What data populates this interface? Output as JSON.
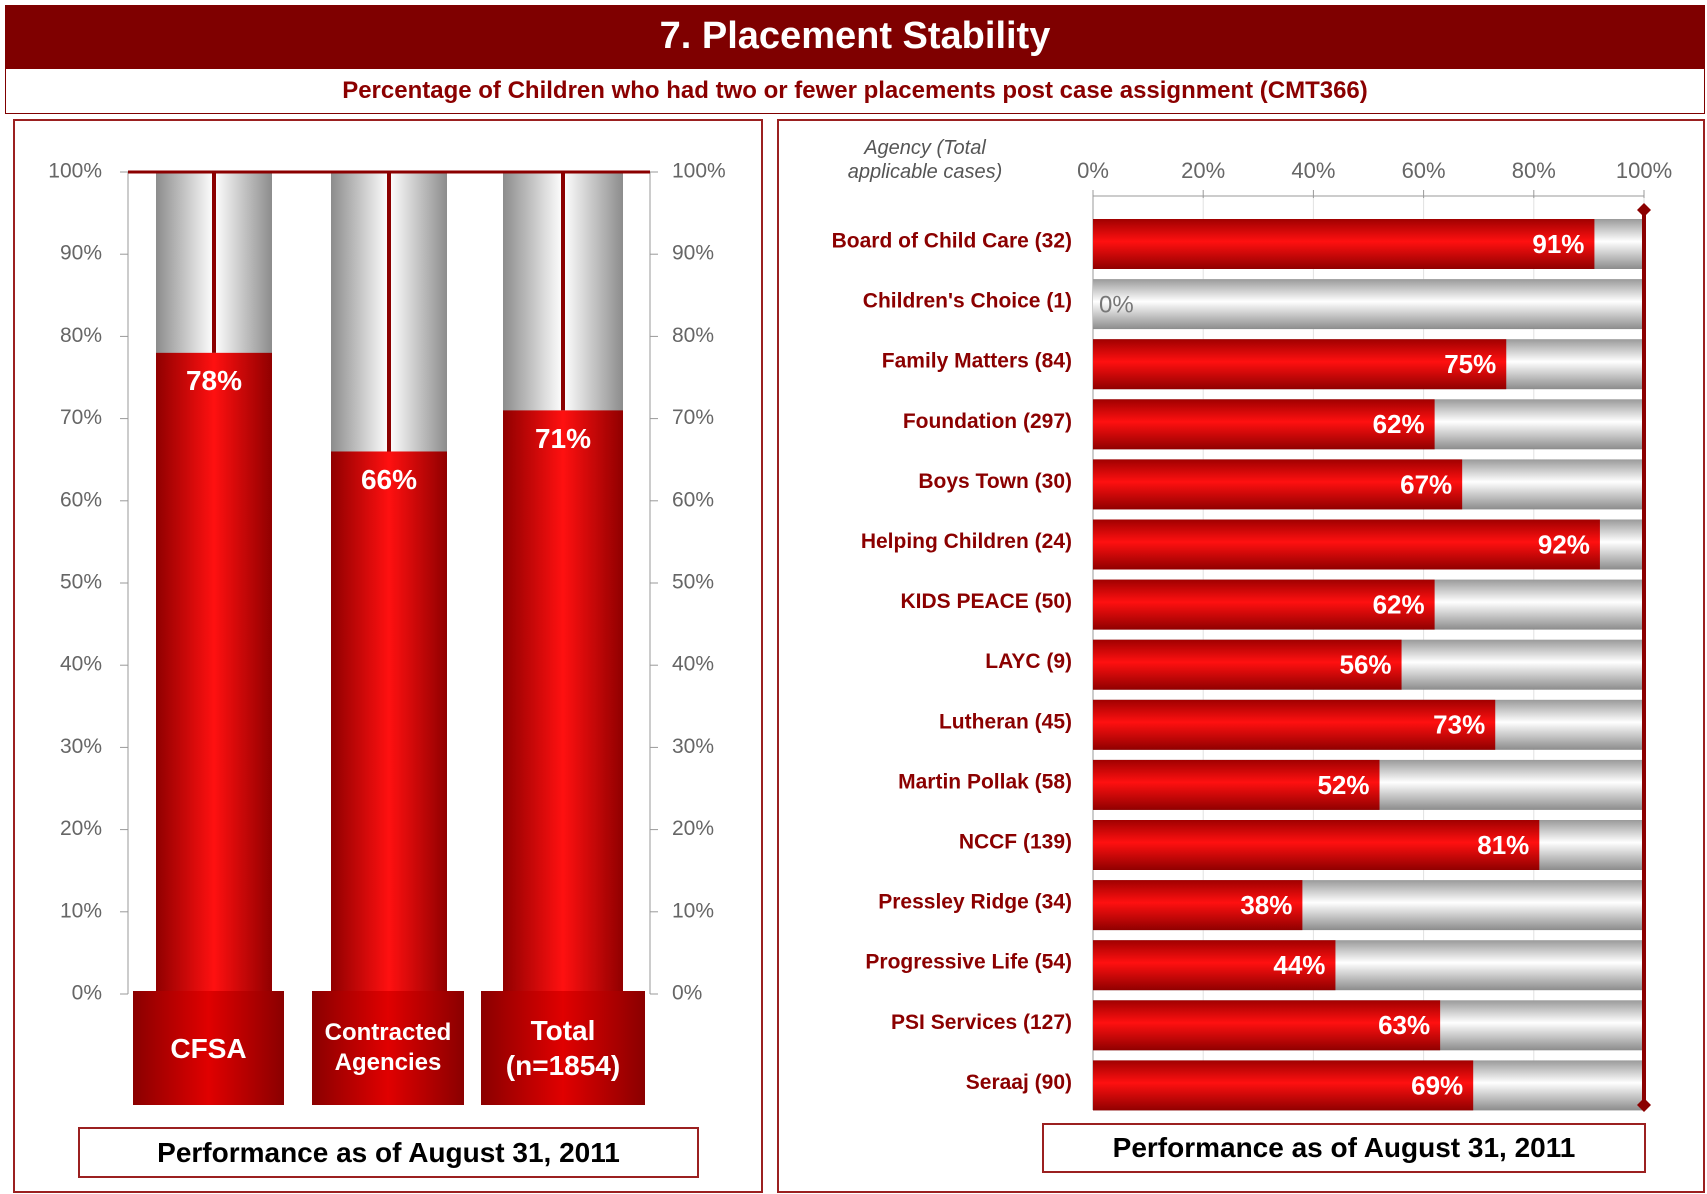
{
  "header": {
    "title": "7.  Placement Stability",
    "subtitle": "Percentage of Children who had two or fewer placements post case assignment (CMT366)"
  },
  "chart_data": [
    {
      "type": "bar",
      "categories": [
        "CFSA",
        "Contracted Agencies",
        "Total (n=1854)"
      ],
      "values": [
        78,
        66,
        71
      ],
      "value_labels": [
        "78%",
        "66%",
        "71%"
      ],
      "color": "#e00000",
      "background_color": "#bdbdbd",
      "ylim": [
        0,
        100
      ],
      "yticks": [
        {
          "value": 0,
          "label": "0%"
        },
        {
          "value": 10,
          "label": "10%"
        },
        {
          "value": 20,
          "label": "20%"
        },
        {
          "value": 30,
          "label": "30%"
        },
        {
          "value": 40,
          "label": "40%"
        },
        {
          "value": 50,
          "label": "50%"
        },
        {
          "value": 60,
          "label": "60%"
        },
        {
          "value": 70,
          "label": "70%"
        },
        {
          "value": 80,
          "label": "80%"
        },
        {
          "value": 90,
          "label": "90%"
        },
        {
          "value": 100,
          "label": "100%"
        }
      ],
      "y2lim": [
        0,
        100
      ],
      "y2ticks": [
        {
          "value": 0,
          "label": "0%"
        },
        {
          "value": 10,
          "label": "10%"
        },
        {
          "value": 20,
          "label": "20%"
        },
        {
          "value": 30,
          "label": "30%"
        },
        {
          "value": 40,
          "label": "40%"
        },
        {
          "value": 50,
          "label": "50%"
        },
        {
          "value": 60,
          "label": "60%"
        },
        {
          "value": 70,
          "label": "70%"
        },
        {
          "value": 80,
          "label": "80%"
        },
        {
          "value": 90,
          "label": "90%"
        },
        {
          "value": 100,
          "label": "100%"
        }
      ],
      "footnote": "Performance as of August 31, 2011"
    },
    {
      "type": "hbar",
      "y_label": "Agency (Total applicable cases)",
      "categories": [
        "Board of Child Care (32)",
        "Children's Choice (1)",
        "Family Matters (84)",
        "Foundation (297)",
        "Boys Town (30)",
        "Helping Children (24)",
        "KIDS PEACE (50)",
        "LAYC (9)",
        "Lutheran (45)",
        "Martin Pollak (58)",
        "NCCF (139)",
        "Pressley Ridge (34)",
        "Progressive Life (54)",
        "PSI Services (127)",
        "Seraaj (90)"
      ],
      "values": [
        91,
        0,
        75,
        62,
        67,
        92,
        62,
        56,
        73,
        52,
        81,
        38,
        44,
        63,
        69
      ],
      "value_labels": [
        "91%",
        "0%",
        "75%",
        "62%",
        "67%",
        "92%",
        "62%",
        "56%",
        "73%",
        "52%",
        "81%",
        "38%",
        "44%",
        "63%",
        "69%"
      ],
      "color": "#e00000",
      "background_color": "#bdbdbd",
      "xlim": [
        0,
        100
      ],
      "xticks": [
        {
          "value": 0,
          "label": "0%"
        },
        {
          "value": 20,
          "label": "20%"
        },
        {
          "value": 40,
          "label": "40%"
        },
        {
          "value": 60,
          "label": "60%"
        },
        {
          "value": 80,
          "label": "80%"
        },
        {
          "value": 100,
          "label": "100%"
        }
      ],
      "grid": true,
      "footnote": "Performance as of August 31, 2011"
    }
  ]
}
